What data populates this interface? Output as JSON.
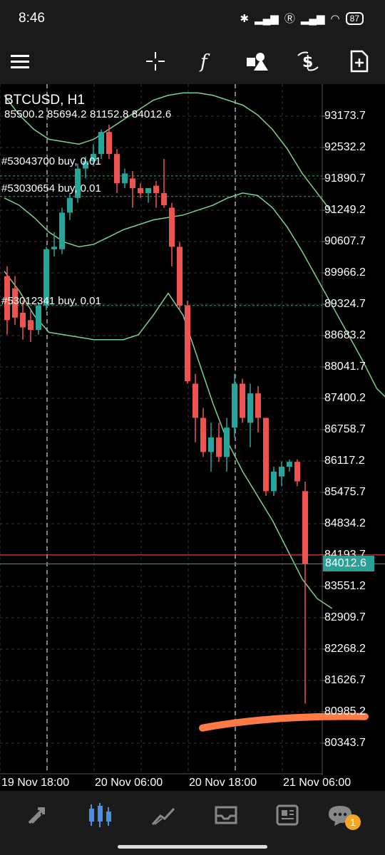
{
  "status_bar": {
    "time": "8:46",
    "battery": "87"
  },
  "chart": {
    "symbol_title": "BTCUSD, H1",
    "ohlc_text": "85500.2 85694.2 81152.8 84012.6",
    "orders": [
      {
        "label": "#53043700 buy, 0.01",
        "price": 91950.0
      },
      {
        "label": "#53030654 buy, 0.01",
        "price": 91530.0
      },
      {
        "label": "#53012341 buy, 0.01",
        "price": 89300.0
      }
    ],
    "current_price_label": "84012.6",
    "price_axis": [
      "93173.7",
      "92532.2",
      "91890.7",
      "91249.2",
      "90607.7",
      "89966.2",
      "89324.7",
      "88683.2",
      "88041.7",
      "87400.2",
      "86758.7",
      "86117.2",
      "85475.7",
      "84834.2",
      "84193.7",
      "83551.2",
      "82909.7",
      "82268.2",
      "81626.7",
      "80985.2",
      "80343.7"
    ],
    "time_axis": [
      "19 Nov 18:00",
      "20 Nov 06:00",
      "20 Nov 18:00",
      "21 Nov 06:00"
    ],
    "colors": {
      "bull": "#26a69a",
      "bear": "#ef5350",
      "band": "#7ad08f",
      "highlight": "#ff7a45"
    }
  },
  "chart_data": {
    "type": "candlestick",
    "title": "BTCUSD, H1",
    "ylim": [
      80000,
      93600
    ],
    "candles": [
      {
        "o": 89900,
        "h": 90100,
        "l": 88700,
        "c": 89000
      },
      {
        "o": 89650,
        "h": 89900,
        "l": 88900,
        "c": 89050
      },
      {
        "o": 89150,
        "h": 89400,
        "l": 88600,
        "c": 88850
      },
      {
        "o": 89000,
        "h": 89200,
        "l": 88550,
        "c": 88800
      },
      {
        "o": 88800,
        "h": 89350,
        "l": 88700,
        "c": 89300
      },
      {
        "o": 89300,
        "h": 90500,
        "l": 89200,
        "c": 90450
      },
      {
        "o": 90450,
        "h": 90800,
        "l": 90300,
        "c": 90500
      },
      {
        "o": 90450,
        "h": 91300,
        "l": 90350,
        "c": 91200
      },
      {
        "o": 91200,
        "h": 91600,
        "l": 91050,
        "c": 91500
      },
      {
        "o": 91500,
        "h": 92200,
        "l": 91400,
        "c": 92100
      },
      {
        "o": 92100,
        "h": 92350,
        "l": 91900,
        "c": 92250
      },
      {
        "o": 92250,
        "h": 92600,
        "l": 92150,
        "c": 92400
      },
      {
        "o": 92400,
        "h": 92900,
        "l": 92300,
        "c": 92850
      },
      {
        "o": 92850,
        "h": 93000,
        "l": 92300,
        "c": 92400
      },
      {
        "o": 92400,
        "h": 92500,
        "l": 91600,
        "c": 91800
      },
      {
        "o": 91800,
        "h": 92100,
        "l": 91700,
        "c": 92000
      },
      {
        "o": 91900,
        "h": 92050,
        "l": 91300,
        "c": 91700
      },
      {
        "o": 91700,
        "h": 91800,
        "l": 91500,
        "c": 91600
      },
      {
        "o": 91600,
        "h": 91700,
        "l": 91400,
        "c": 91700
      },
      {
        "o": 91750,
        "h": 91850,
        "l": 91300,
        "c": 91600
      },
      {
        "o": 91600,
        "h": 92300,
        "l": 91300,
        "c": 91350
      },
      {
        "o": 91300,
        "h": 91400,
        "l": 90100,
        "c": 90500
      },
      {
        "o": 90500,
        "h": 90600,
        "l": 89200,
        "c": 89300
      },
      {
        "o": 89300,
        "h": 89400,
        "l": 87700,
        "c": 87750
      },
      {
        "o": 87700,
        "h": 87900,
        "l": 86500,
        "c": 87000
      },
      {
        "o": 87000,
        "h": 87200,
        "l": 86200,
        "c": 86300
      },
      {
        "o": 86300,
        "h": 86900,
        "l": 85900,
        "c": 86600
      },
      {
        "o": 86600,
        "h": 86900,
        "l": 86100,
        "c": 86200
      },
      {
        "o": 86200,
        "h": 87000,
        "l": 85900,
        "c": 86800
      },
      {
        "o": 86800,
        "h": 87900,
        "l": 86600,
        "c": 87700
      },
      {
        "o": 87700,
        "h": 87800,
        "l": 86900,
        "c": 87000
      },
      {
        "o": 86900,
        "h": 87700,
        "l": 86400,
        "c": 87500
      },
      {
        "o": 87500,
        "h": 87650,
        "l": 86700,
        "c": 87000
      },
      {
        "o": 87000,
        "h": 87000,
        "l": 85400,
        "c": 85500
      },
      {
        "o": 85500,
        "h": 86000,
        "l": 85400,
        "c": 85900
      },
      {
        "o": 85800,
        "h": 86100,
        "l": 85600,
        "c": 86000
      },
      {
        "o": 86000,
        "h": 86150,
        "l": 85900,
        "c": 86100
      },
      {
        "o": 86100,
        "h": 86150,
        "l": 85600,
        "c": 85700
      },
      {
        "o": 85500,
        "h": 85694.2,
        "l": 81152.8,
        "c": 84012.6
      }
    ],
    "upper_band": [
      93600,
      93200,
      92900,
      92700,
      92650,
      92600,
      92700,
      92900,
      93100,
      93300,
      93500,
      93600,
      93650,
      93650,
      93600,
      93500,
      93400,
      93200,
      92900,
      92500,
      92000,
      91600,
      91200
    ],
    "middle_band": [
      91500,
      91350,
      91100,
      90800,
      90600,
      90500,
      90550,
      90700,
      90850,
      90950,
      91050,
      91100,
      91150,
      91250,
      91350,
      91500,
      91600,
      91550,
      91300,
      90900,
      90400,
      89850,
      89300,
      88750,
      88200,
      87600,
      87300
    ],
    "lower_band": [
      90000,
      89600,
      89100,
      88750,
      88700,
      88650,
      88600,
      88600,
      88600,
      88700,
      89100,
      89550,
      89100,
      88200,
      87300,
      86500,
      85900,
      85400,
      84900,
      84300,
      83700,
      83300,
      83100
    ]
  },
  "bottom_nav": {
    "badge_count": "1"
  }
}
